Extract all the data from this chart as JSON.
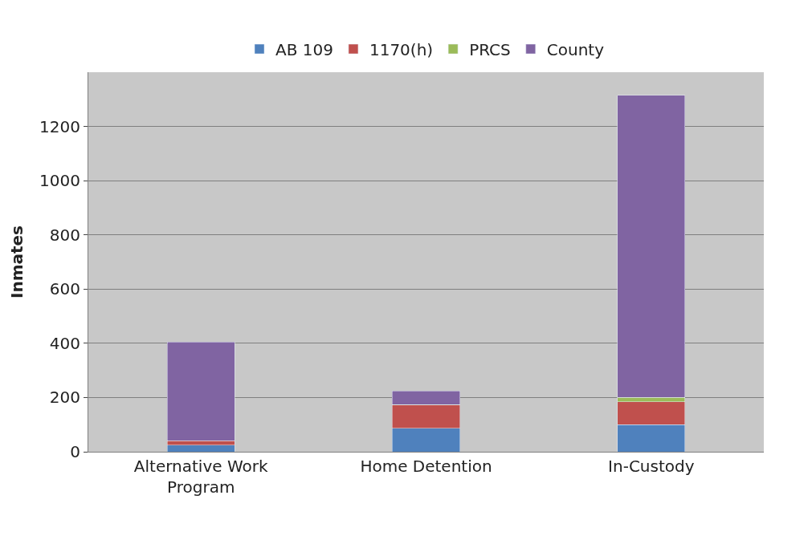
{
  "chart_data": {
    "type": "bar",
    "stacked": true,
    "ylabel": "Inmates",
    "categories": [
      "Alternative Work Program",
      "Home Detention",
      "In-Custody"
    ],
    "series": [
      {
        "name": "AB 109",
        "color": "#4f81bd",
        "values": [
          25,
          87,
          100
        ]
      },
      {
        "name": "1170(h)",
        "color": "#c0504d",
        "values": [
          15,
          85,
          85
        ]
      },
      {
        "name": "PRCS",
        "color": "#9bbb59",
        "values": [
          null,
          2,
          15
        ]
      },
      {
        "name": "County",
        "color": "#8064a2",
        "values": [
          365,
          50,
          1115
        ]
      }
    ],
    "ylim": [
      0,
      1400
    ],
    "yticks": [
      0,
      200,
      400,
      600,
      800,
      1000,
      1200
    ],
    "grid": "y",
    "legend": "top"
  }
}
